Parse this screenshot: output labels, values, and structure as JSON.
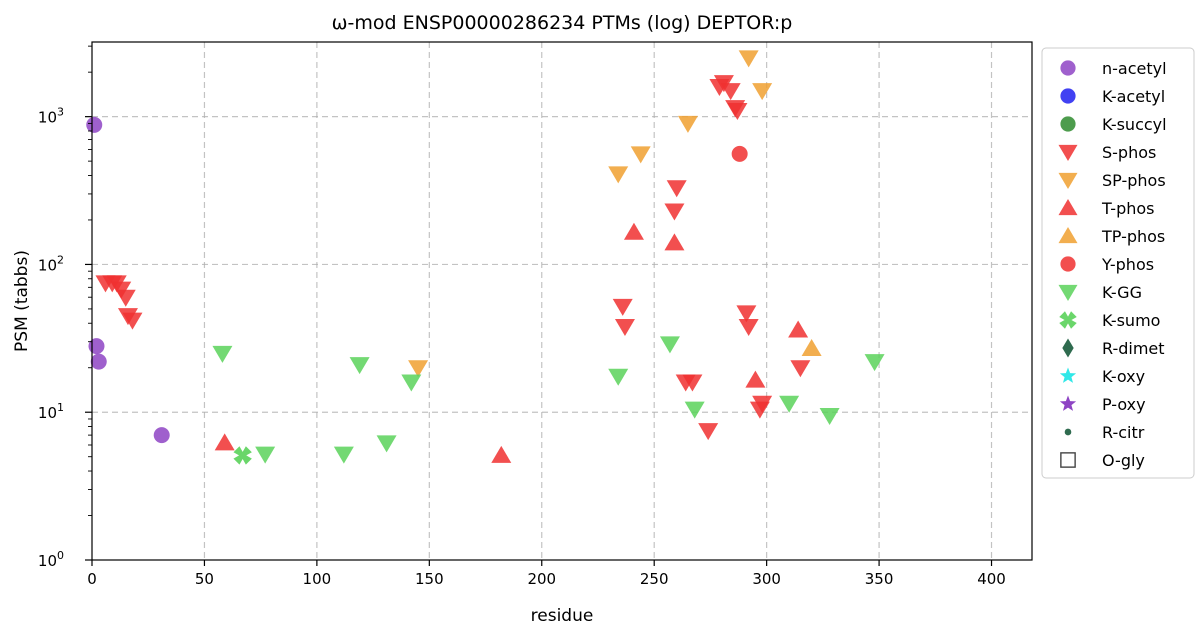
{
  "chart_data": {
    "type": "scatter",
    "title": "ω-mod ENSP00000286234 PTMs (log) DEPTOR:p",
    "xlabel": "residue",
    "ylabel": "PSM (tabbs)",
    "xlim": [
      0,
      418
    ],
    "ylim": [
      1,
      3200
    ],
    "yscale": "log",
    "grid": true,
    "legend_position": "outside-right",
    "x_ticks": [
      {
        "value": 0,
        "label": "0"
      },
      {
        "value": 50,
        "label": "50"
      },
      {
        "value": 100,
        "label": "100"
      },
      {
        "value": 150,
        "label": "150"
      },
      {
        "value": 200,
        "label": "200"
      },
      {
        "value": 250,
        "label": "250"
      },
      {
        "value": 300,
        "label": "300"
      },
      {
        "value": 350,
        "label": "350"
      },
      {
        "value": 400,
        "label": "400"
      }
    ],
    "y_ticks": [
      {
        "value": 1,
        "base": "10",
        "exp": "0"
      },
      {
        "value": 10,
        "base": "10",
        "exp": "1"
      },
      {
        "value": 100,
        "base": "10",
        "exp": "2"
      },
      {
        "value": 1000,
        "base": "10",
        "exp": "3"
      }
    ],
    "series": [
      {
        "name": "n-acetyl",
        "marker": "circle",
        "color": "#8e44c4",
        "points": [
          [
            1,
            880
          ],
          [
            2,
            28
          ],
          [
            3,
            22
          ],
          [
            31,
            7
          ]
        ]
      },
      {
        "name": "K-acetyl",
        "marker": "circle",
        "color": "#2020f0",
        "points": []
      },
      {
        "name": "K-succyl",
        "marker": "circle",
        "color": "#2e8b2e",
        "points": []
      },
      {
        "name": "S-phos",
        "marker": "triangle-down",
        "color": "#f03030",
        "points": [
          [
            6,
            75
          ],
          [
            9,
            75
          ],
          [
            11,
            75
          ],
          [
            13,
            68
          ],
          [
            15,
            60
          ],
          [
            16,
            45
          ],
          [
            18,
            42
          ],
          [
            236,
            52
          ],
          [
            237,
            38
          ],
          [
            259,
            230
          ],
          [
            260,
            330
          ],
          [
            264,
            16
          ],
          [
            267,
            16
          ],
          [
            274,
            7.5
          ],
          [
            279,
            1600
          ],
          [
            281,
            1700
          ],
          [
            284,
            1500
          ],
          [
            286,
            1150
          ],
          [
            287,
            1100
          ],
          [
            291,
            47
          ],
          [
            292,
            38
          ],
          [
            297,
            10.5
          ],
          [
            298,
            11.5
          ],
          [
            315,
            20
          ]
        ]
      },
      {
        "name": "SP-phos",
        "marker": "triangle-down",
        "color": "#f0a030",
        "points": [
          [
            145,
            20
          ],
          [
            234,
            410
          ],
          [
            244,
            560
          ],
          [
            265,
            900
          ],
          [
            292,
            2500
          ],
          [
            298,
            1500
          ]
        ]
      },
      {
        "name": "T-phos",
        "marker": "triangle-up",
        "color": "#f03030",
        "points": [
          [
            59,
            6.2
          ],
          [
            182,
            5.1
          ],
          [
            241,
            165
          ],
          [
            259,
            140
          ],
          [
            295,
            16.5
          ],
          [
            314,
            36
          ]
        ]
      },
      {
        "name": "TP-phos",
        "marker": "triangle-up",
        "color": "#f0a030",
        "points": [
          [
            320,
            27
          ]
        ]
      },
      {
        "name": "Y-phos",
        "marker": "circle",
        "color": "#f03030",
        "points": [
          [
            288,
            560
          ]
        ]
      },
      {
        "name": "K-GG",
        "marker": "triangle-down",
        "color": "#5ad25a",
        "points": [
          [
            58,
            25
          ],
          [
            77,
            5.2
          ],
          [
            112,
            5.2
          ],
          [
            119,
            21
          ],
          [
            131,
            6.2
          ],
          [
            142,
            16
          ],
          [
            234,
            17.5
          ],
          [
            257,
            29
          ],
          [
            268,
            10.5
          ],
          [
            310,
            11.5
          ],
          [
            328,
            9.5
          ],
          [
            348,
            22
          ]
        ]
      },
      {
        "name": "K-sumo",
        "marker": "x",
        "color": "#5ad25a",
        "points": [
          [
            67,
            5.1
          ]
        ]
      },
      {
        "name": "R-dimet",
        "marker": "diamond",
        "color": "#2f6b4f",
        "points": []
      },
      {
        "name": "K-oxy",
        "marker": "star",
        "color": "#30e8e8",
        "points": []
      },
      {
        "name": "P-oxy",
        "marker": "star",
        "color": "#8e44c4",
        "points": []
      },
      {
        "name": "R-citr",
        "marker": "small-circle",
        "color": "#2f6b4f",
        "points": []
      },
      {
        "name": "O-gly",
        "marker": "square-open",
        "color": "#444444",
        "points": []
      }
    ]
  }
}
